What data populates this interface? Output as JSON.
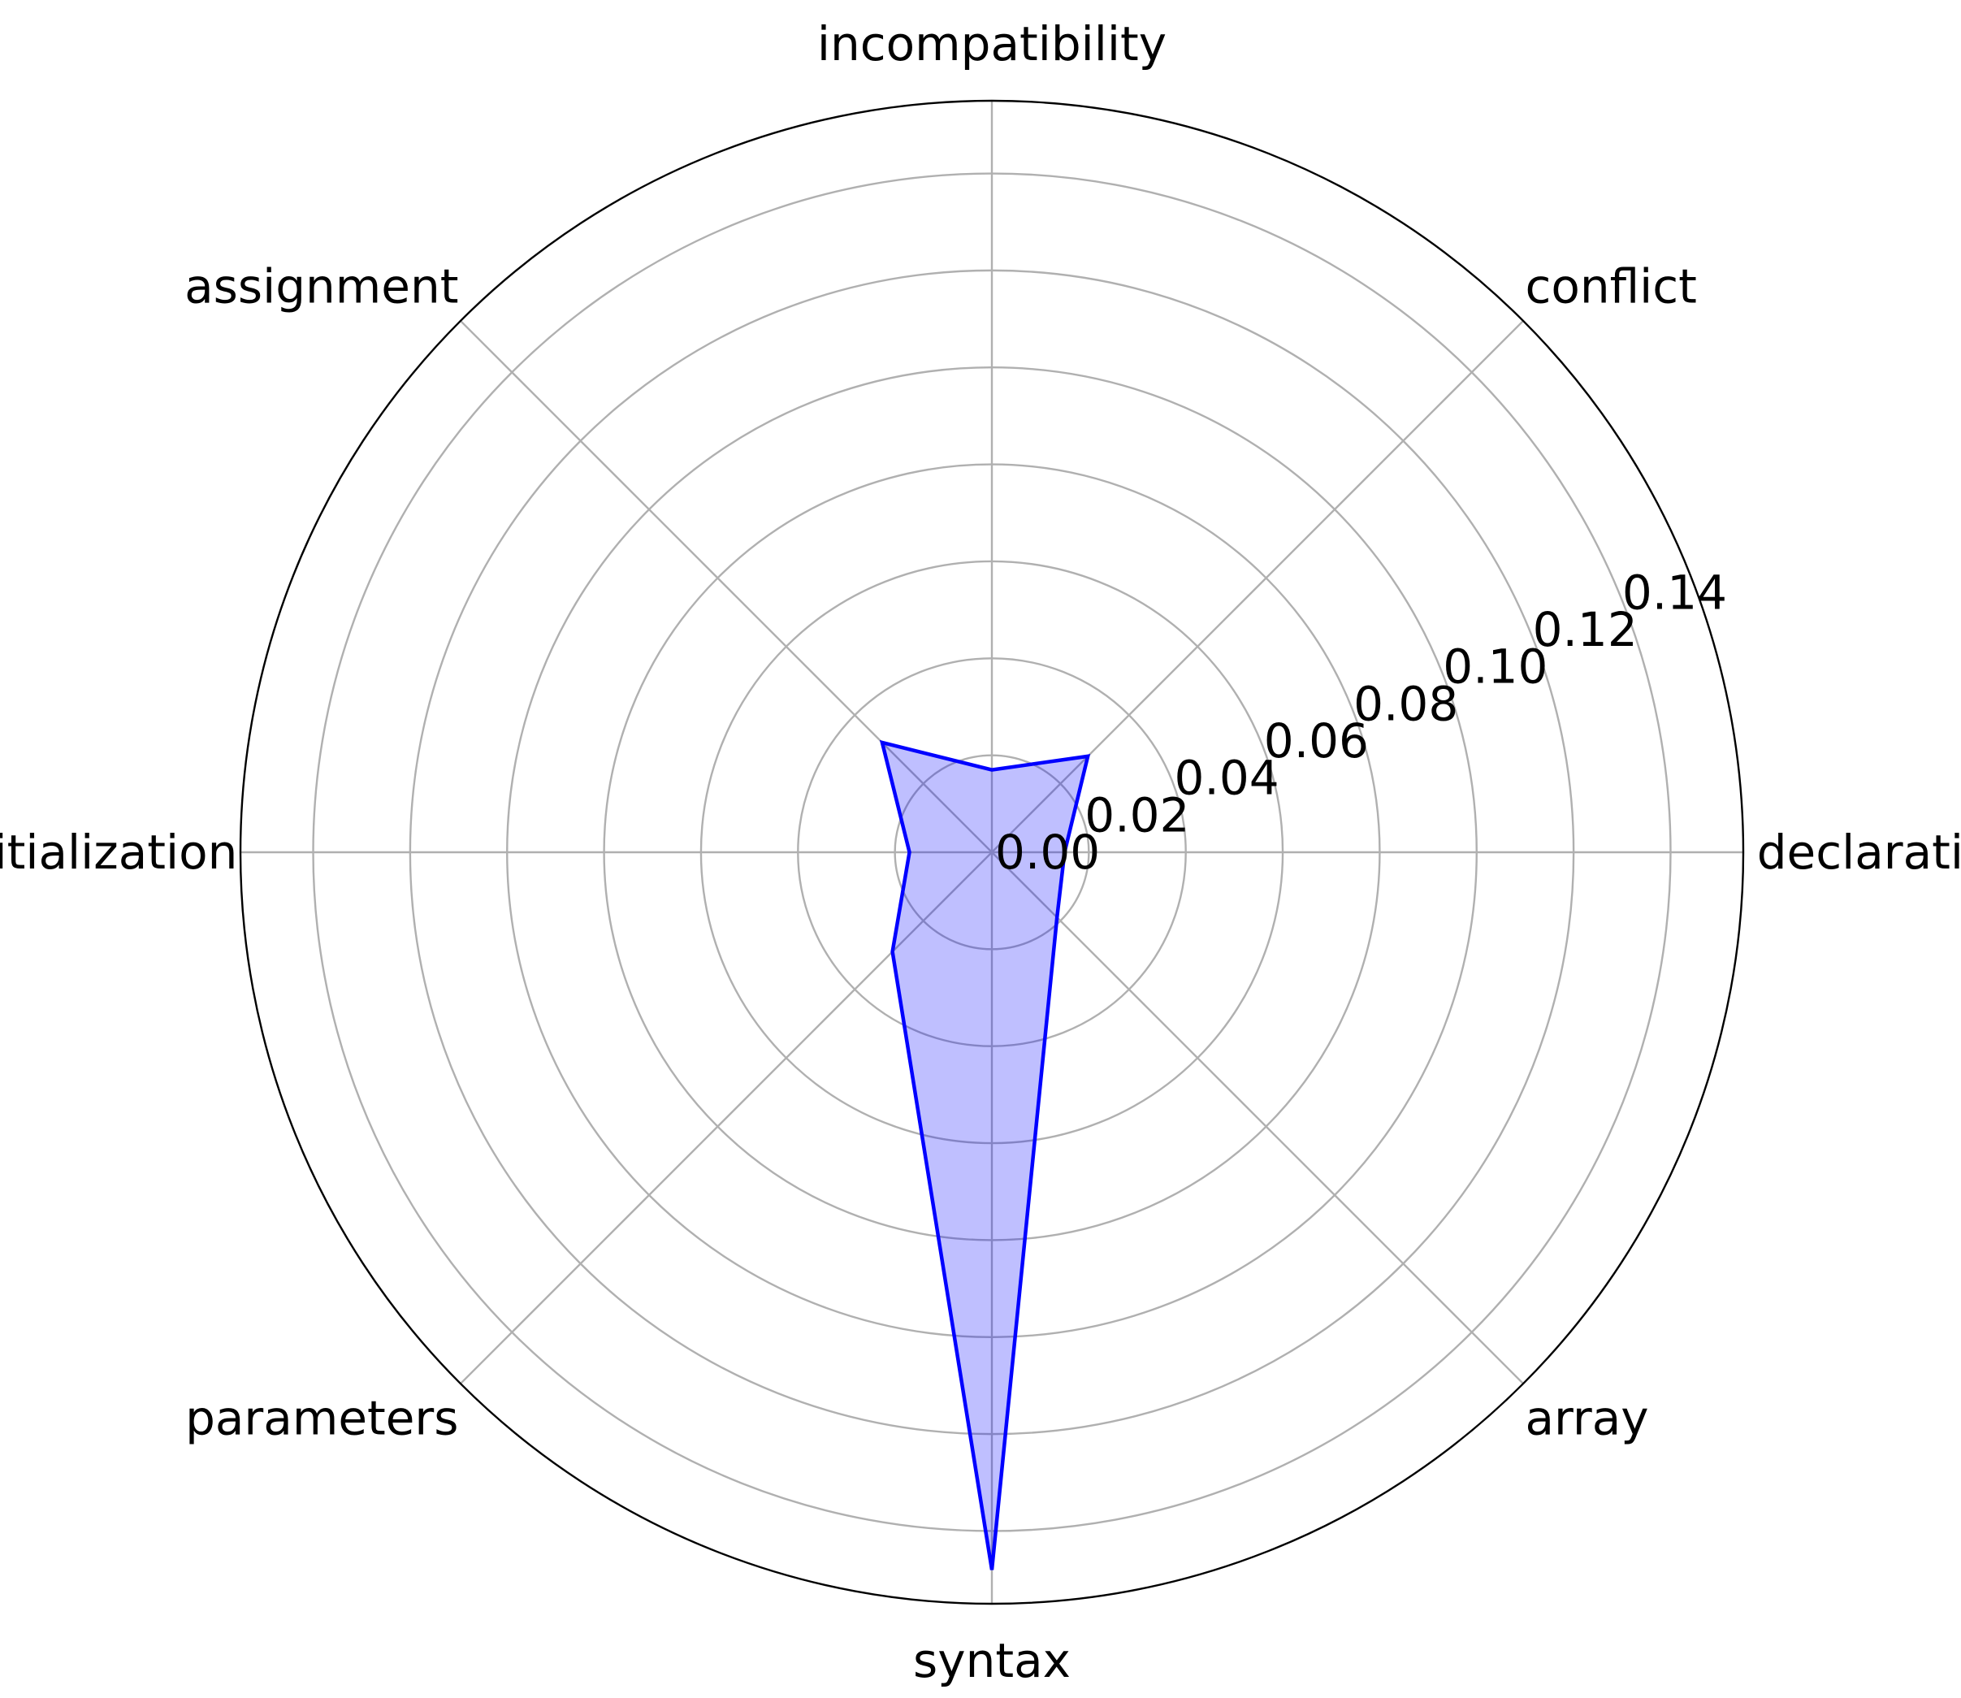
{
  "chart_data": {
    "type": "radar",
    "title": "",
    "categories": [
      "declaration",
      "conflict",
      "incompatibility",
      "assignment",
      "initialization",
      "parameters",
      "syntax",
      "array"
    ],
    "series": [
      {
        "values": [
          0.015,
          0.028,
          0.017,
          0.032,
          0.017,
          0.029,
          0.148,
          0.019
        ],
        "color": "#0000ff",
        "fill": "#0000ff",
        "fill_opacity": 0.25
      }
    ],
    "rlim": [
      0,
      0.155
    ],
    "r_ticks": [
      0.0,
      0.02,
      0.04,
      0.06,
      0.08,
      0.1,
      0.12,
      0.14
    ],
    "r_tick_labels": [
      "0.00",
      "0.02",
      "0.04",
      "0.06",
      "0.08",
      "0.10",
      "0.12",
      "0.14"
    ],
    "grid": true
  }
}
